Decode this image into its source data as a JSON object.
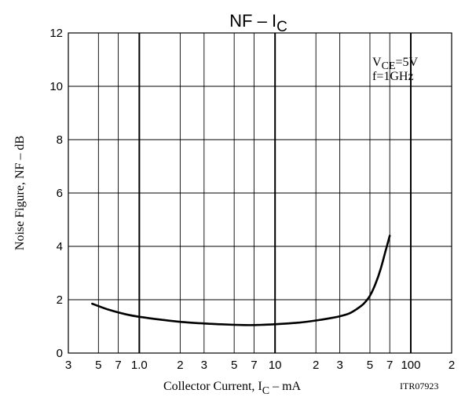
{
  "chart_data": {
    "type": "line",
    "title": {
      "main": "NF  –  I",
      "sub": "C"
    },
    "xlabel": {
      "main": "Collector Current, I",
      "sub": "C",
      "suffix": "  –  mA"
    },
    "ylabel": "Noise Figure, NF  –  dB",
    "figure_code": "ITR07923",
    "conditions": {
      "vce": {
        "main": "V",
        "sub": "CE",
        "suffix": "=5V"
      },
      "freq": "f=1GHz"
    },
    "x_scale": "log",
    "xlim": [
      0.3,
      200
    ],
    "ylim": [
      0,
      12
    ],
    "x_ticks": [
      {
        "value": 0.3,
        "label": "3"
      },
      {
        "value": 0.5,
        "label": "5"
      },
      {
        "value": 0.7,
        "label": "7"
      },
      {
        "value": 1,
        "label": "1.0"
      },
      {
        "value": 2,
        "label": "2"
      },
      {
        "value": 3,
        "label": "3"
      },
      {
        "value": 5,
        "label": "5"
      },
      {
        "value": 7,
        "label": "7"
      },
      {
        "value": 10,
        "label": "10"
      },
      {
        "value": 20,
        "label": "2"
      },
      {
        "value": 30,
        "label": "3"
      },
      {
        "value": 50,
        "label": "5"
      },
      {
        "value": 70,
        "label": "7"
      },
      {
        "value": 100,
        "label": "100"
      },
      {
        "value": 200,
        "label": "2"
      }
    ],
    "y_ticks": [
      0,
      2,
      4,
      6,
      8,
      10,
      12
    ],
    "grid": true,
    "series": [
      {
        "x": [
          0.45,
          0.6,
          0.8,
          1.0,
          1.5,
          2,
          3,
          4,
          5,
          6,
          7,
          8,
          10,
          15,
          20,
          25,
          30,
          35,
          40,
          45,
          50,
          55,
          60,
          65,
          70
        ],
        "y": [
          1.85,
          1.62,
          1.45,
          1.36,
          1.24,
          1.17,
          1.11,
          1.08,
          1.06,
          1.05,
          1.05,
          1.06,
          1.08,
          1.14,
          1.22,
          1.3,
          1.38,
          1.48,
          1.65,
          1.85,
          2.15,
          2.6,
          3.15,
          3.8,
          4.4
        ]
      }
    ]
  }
}
